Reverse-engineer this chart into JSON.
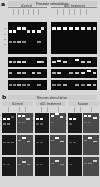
{
  "panel_a_title": "Prostate stimulation",
  "panel_a_left_label": "siControl",
  "panel_a_right_label": "siU1 treatment",
  "panel_b_title": "Neuron stimulation",
  "panel_b_sub1": "siControl",
  "panel_b_sub2": "siU1 treatment",
  "panel_b_sub3": "Invasion",
  "overall_bg": "#d8d8d8",
  "gel_bg_dark": "#0a0a0a",
  "gel_bg_gray": "#555555",
  "header_bg": "#c8c8c8",
  "subheader_bg": "#d0d0d0",
  "white": "#ffffff",
  "light_gray": "#bbbbbb",
  "mid_gray": "#888888"
}
